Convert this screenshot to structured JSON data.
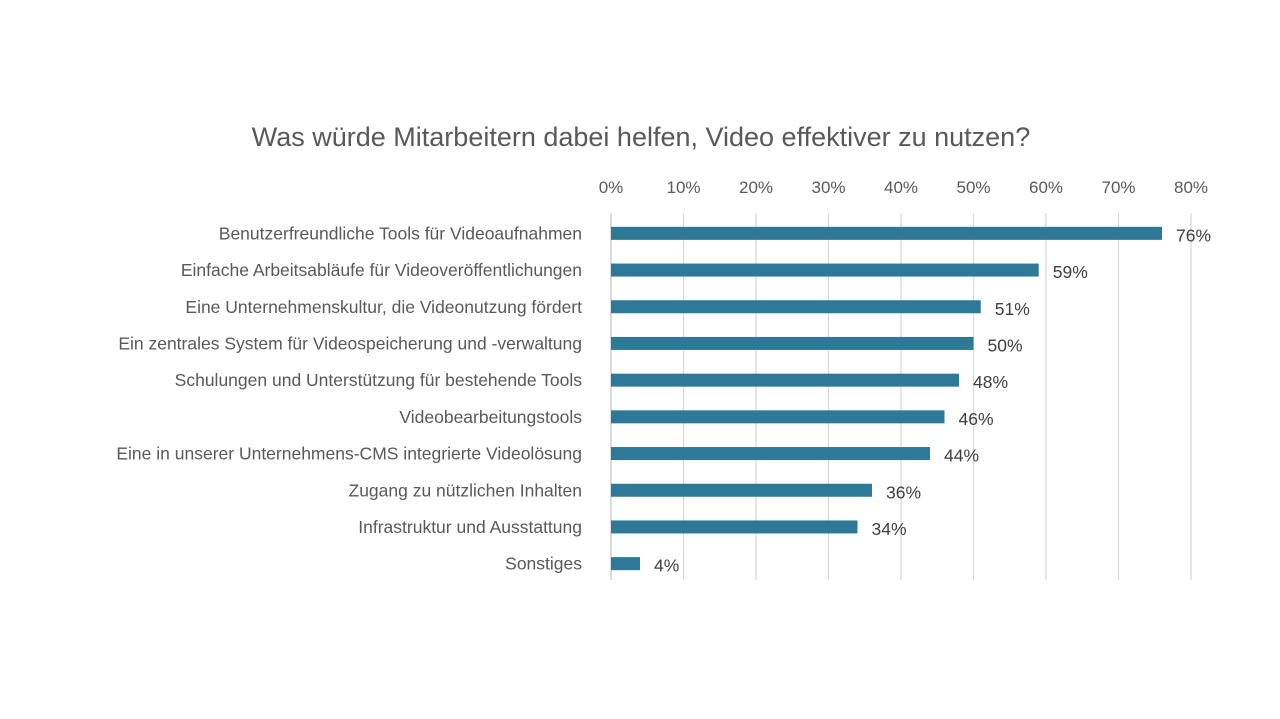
{
  "chart_data": {
    "type": "bar",
    "orientation": "horizontal",
    "title": "Was würde Mitarbeitern dabei helfen, Video effektiver zu nutzen?",
    "xlabel": "",
    "ylabel": "",
    "xlim": [
      0,
      80
    ],
    "x_ticks": [
      "0%",
      "10%",
      "20%",
      "30%",
      "40%",
      "50%",
      "60%",
      "70%",
      "80%"
    ],
    "x_axis_position": "top",
    "grid": "vertical",
    "bar_color": "#2e7898",
    "categories": [
      "Benutzerfreundliche Tools für Videoaufnahmen",
      "Einfache Arbeitsabläufe für Videoveröffentlichungen",
      "Eine Unternehmenskultur, die Videonutzung fördert",
      "Ein zentrales System für Videospeicherung und -verwaltung",
      "Schulungen und Unterstützung für bestehende Tools",
      "Videobearbeitungstools",
      "Eine in unserer Unternehmens-CMS integrierte Videolösung",
      "Zugang zu nützlichen Inhalten",
      "Infrastruktur und Ausstattung",
      "Sonstiges"
    ],
    "values": [
      76,
      59,
      51,
      50,
      48,
      46,
      44,
      36,
      34,
      4
    ],
    "data_labels": [
      "76%",
      "59%",
      "51%",
      "50%",
      "48%",
      "46%",
      "44%",
      "36%",
      "34%",
      "4%"
    ]
  }
}
